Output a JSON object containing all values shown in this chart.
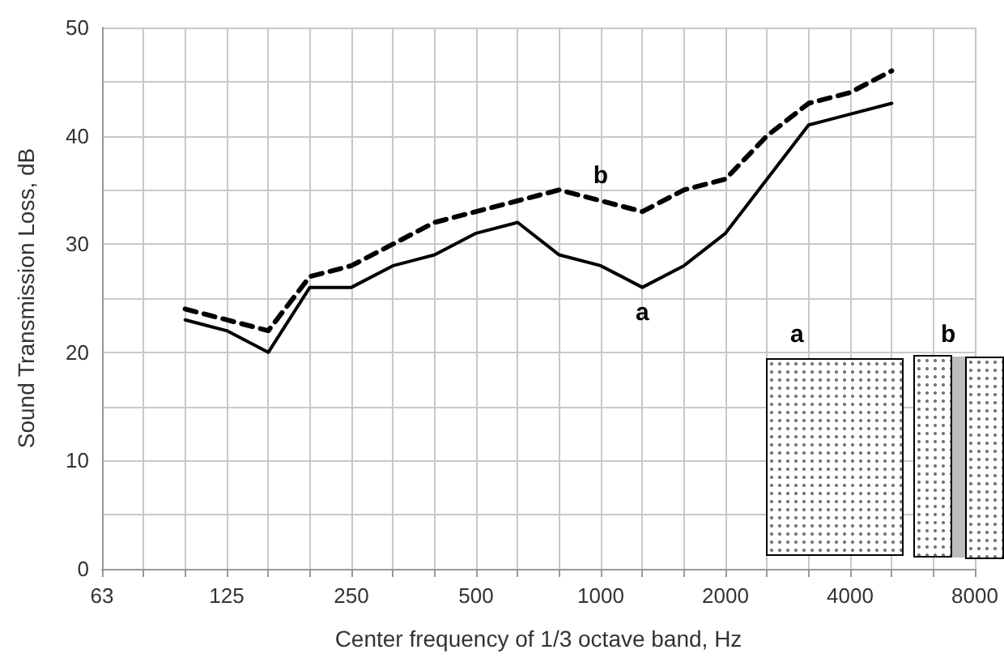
{
  "chart_data": {
    "type": "line",
    "xlabel": "Center frequency of 1/3 octave band, Hz",
    "ylabel": "Sound Transmission Loss, dB",
    "categories": [
      "63",
      null,
      null,
      "125",
      null,
      null,
      "250",
      null,
      null,
      "500",
      null,
      null,
      "1000",
      null,
      null,
      "2000",
      null,
      null,
      "4000",
      null,
      null,
      "8000"
    ],
    "series": [
      {
        "name": "a",
        "color": "#000000",
        "line_style": "solid",
        "values": [
          null,
          null,
          23,
          22,
          20,
          26,
          26,
          28,
          29,
          31,
          32,
          29,
          28,
          26,
          28,
          31,
          36,
          41,
          42,
          43,
          null,
          null
        ]
      },
      {
        "name": "b",
        "color": "#000000",
        "line_style": "dashed",
        "values": [
          null,
          null,
          24,
          23,
          22,
          27,
          28,
          30,
          32,
          33,
          34,
          35,
          34,
          33,
          35,
          36,
          40,
          43,
          44,
          46,
          null,
          null
        ]
      }
    ],
    "ylim": [
      0,
      50
    ],
    "yticks": [
      0,
      {
        "value": 5,
        "label": null
      },
      10,
      {
        "value": 15,
        "label": null
      },
      20,
      {
        "value": 25,
        "label": null
      },
      30,
      {
        "value": 35,
        "label": null
      },
      40,
      {
        "value": 45,
        "label": null
      },
      50
    ],
    "grid": true,
    "legend": false,
    "marker": "none",
    "annotations": [
      "a",
      "b"
    ]
  }
}
